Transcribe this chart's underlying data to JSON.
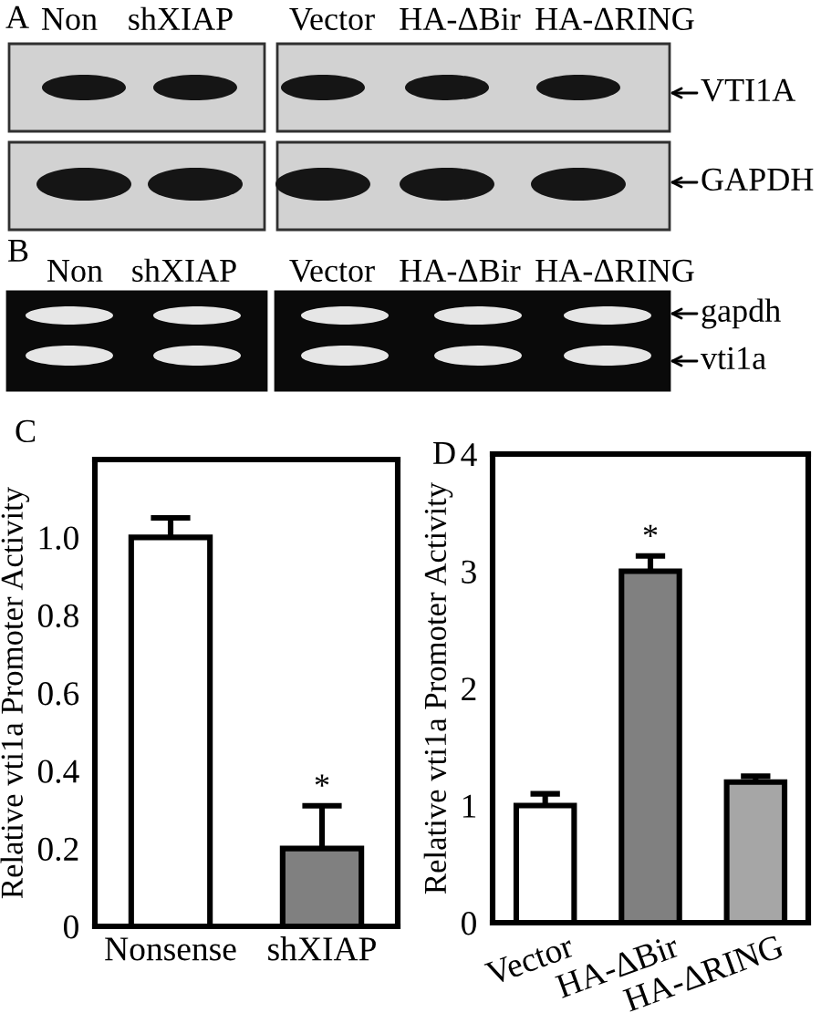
{
  "chart_data": [
    {
      "type": "other",
      "title": "A",
      "categories": [
        "Non",
        "shXIAP",
        "Vector",
        "HA-ΔBir",
        "HA-ΔRING"
      ],
      "annotations": [
        "VTI1A",
        "GAPDH"
      ]
    },
    {
      "type": "other",
      "title": "B",
      "categories": [
        "Non",
        "shXIAP",
        "Vector",
        "HA-ΔBir",
        "HA-ΔRING"
      ],
      "annotations": [
        "gapdh",
        "vti1a"
      ]
    },
    {
      "type": "bar",
      "title": "C",
      "ylabel": "Relative vti1a Promoter Activity",
      "categories": [
        "Nonsense",
        "shXIAP"
      ],
      "values": [
        1.0,
        0.2
      ],
      "colors": [
        "#ffffff",
        "#808080"
      ],
      "errors": [
        [
          1.0,
          1.05
        ],
        [
          0.2,
          0.31
        ]
      ],
      "ylim": [
        0,
        1.2
      ],
      "yticks": [
        0,
        0.2,
        0.4,
        0.6,
        0.8,
        {
          "value": 1,
          "label": "1.0"
        }
      ],
      "annotations": [
        {
          "text": "*",
          "x": "shXIAP",
          "y": 0.31
        }
      ]
    },
    {
      "type": "bar",
      "title": "D",
      "ylabel": "Relative vti1a Promoter Activity",
      "categories": [
        "Vector",
        "HA-ΔBir",
        "HA-ΔRING"
      ],
      "values": [
        1.0,
        3.0,
        1.2
      ],
      "colors": [
        "#ffffff",
        "#808080",
        "#a6a6a6"
      ],
      "errors": [
        [
          1.0,
          1.1
        ],
        [
          3.0,
          3.13
        ],
        [
          1.2,
          1.25
        ]
      ],
      "ylim": [
        0,
        4
      ],
      "yticks": [
        0,
        1,
        2,
        3,
        4
      ],
      "annotations": [
        {
          "text": "*",
          "x": "HA-ΔBir",
          "y": 3.13
        }
      ]
    }
  ]
}
